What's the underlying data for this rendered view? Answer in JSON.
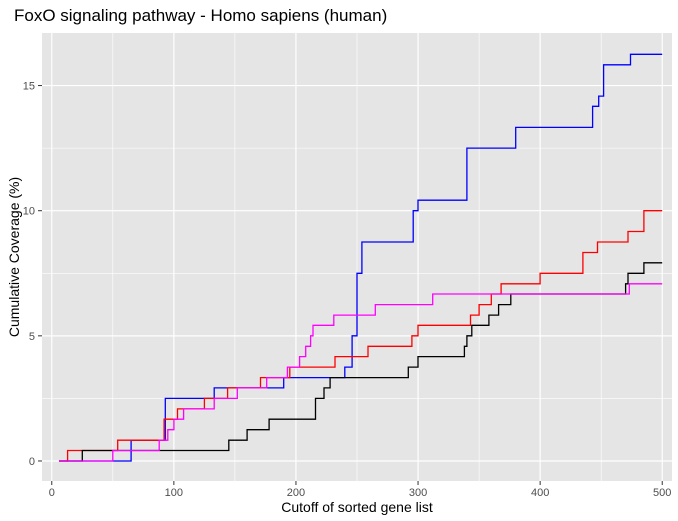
{
  "chart_data": {
    "type": "line",
    "title": "FoxO signaling pathway - Homo sapiens (human)",
    "xlabel": "Cutoff of sorted gene list",
    "ylabel": "Cumulative Coverage (%)",
    "xlim": [
      -8,
      508
    ],
    "ylim": [
      -0.8,
      17.1
    ],
    "x_ticks": [
      0,
      100,
      200,
      300,
      400,
      500
    ],
    "y_ticks": [
      0,
      5,
      10,
      15
    ],
    "x_tick_labels": [
      "0",
      "100",
      "200",
      "300",
      "400",
      "500"
    ],
    "y_tick_labels": [
      "0",
      "5",
      "10",
      "15"
    ],
    "grid": true,
    "legend": "none",
    "panel_color": "#e5e5e5",
    "grid_color": "#ffffff",
    "series": [
      {
        "color": "#0000ff",
        "points": [
          [
            6,
            0
          ],
          [
            65,
            0
          ],
          [
            65,
            0.83
          ],
          [
            93,
            0.83
          ],
          [
            93,
            2.5
          ],
          [
            133,
            2.5
          ],
          [
            133,
            2.92
          ],
          [
            190,
            2.92
          ],
          [
            190,
            3.33
          ],
          [
            240,
            3.33
          ],
          [
            240,
            3.75
          ],
          [
            246,
            3.75
          ],
          [
            246,
            5.0
          ],
          [
            250,
            5.0
          ],
          [
            250,
            7.5
          ],
          [
            254,
            7.5
          ],
          [
            254,
            8.75
          ],
          [
            296,
            8.75
          ],
          [
            296,
            10.0
          ],
          [
            300,
            10.0
          ],
          [
            300,
            10.42
          ],
          [
            340,
            10.42
          ],
          [
            340,
            12.5
          ],
          [
            380,
            12.5
          ],
          [
            380,
            13.33
          ],
          [
            443,
            13.33
          ],
          [
            443,
            14.17
          ],
          [
            448,
            14.17
          ],
          [
            448,
            14.58
          ],
          [
            452,
            14.58
          ],
          [
            452,
            15.83
          ],
          [
            474,
            15.83
          ],
          [
            474,
            16.25
          ],
          [
            500,
            16.25
          ]
        ]
      },
      {
        "color": "#ff0000",
        "points": [
          [
            6,
            0
          ],
          [
            13,
            0
          ],
          [
            13,
            0.42
          ],
          [
            54,
            0.42
          ],
          [
            54,
            0.83
          ],
          [
            92,
            0.83
          ],
          [
            92,
            1.67
          ],
          [
            103,
            1.67
          ],
          [
            103,
            2.08
          ],
          [
            125,
            2.08
          ],
          [
            125,
            2.5
          ],
          [
            144,
            2.5
          ],
          [
            144,
            2.92
          ],
          [
            171,
            2.92
          ],
          [
            171,
            3.33
          ],
          [
            195,
            3.33
          ],
          [
            195,
            3.75
          ],
          [
            232,
            3.75
          ],
          [
            232,
            4.17
          ],
          [
            259,
            4.17
          ],
          [
            259,
            4.58
          ],
          [
            295,
            4.58
          ],
          [
            295,
            5.0
          ],
          [
            300,
            5.0
          ],
          [
            300,
            5.42
          ],
          [
            343,
            5.42
          ],
          [
            343,
            5.83
          ],
          [
            350,
            5.83
          ],
          [
            350,
            6.25
          ],
          [
            360,
            6.25
          ],
          [
            360,
            6.67
          ],
          [
            368,
            6.67
          ],
          [
            368,
            7.08
          ],
          [
            400,
            7.08
          ],
          [
            400,
            7.5
          ],
          [
            435,
            7.5
          ],
          [
            435,
            8.33
          ],
          [
            447,
            8.33
          ],
          [
            447,
            8.75
          ],
          [
            472,
            8.75
          ],
          [
            472,
            9.17
          ],
          [
            485,
            9.17
          ],
          [
            485,
            10.0
          ],
          [
            500,
            10.0
          ]
        ]
      },
      {
        "color": "#000000",
        "points": [
          [
            6,
            0
          ],
          [
            25,
            0
          ],
          [
            25,
            0.42
          ],
          [
            145,
            0.42
          ],
          [
            145,
            0.83
          ],
          [
            160,
            0.83
          ],
          [
            160,
            1.25
          ],
          [
            178,
            1.25
          ],
          [
            178,
            1.67
          ],
          [
            216,
            1.67
          ],
          [
            216,
            2.5
          ],
          [
            223,
            2.5
          ],
          [
            223,
            2.92
          ],
          [
            228,
            2.92
          ],
          [
            228,
            3.33
          ],
          [
            292,
            3.33
          ],
          [
            292,
            3.75
          ],
          [
            300,
            3.75
          ],
          [
            300,
            4.17
          ],
          [
            338,
            4.17
          ],
          [
            338,
            4.58
          ],
          [
            340,
            4.58
          ],
          [
            340,
            5.0
          ],
          [
            344,
            5.0
          ],
          [
            344,
            5.42
          ],
          [
            358,
            5.42
          ],
          [
            358,
            5.83
          ],
          [
            366,
            5.83
          ],
          [
            366,
            6.25
          ],
          [
            376,
            6.25
          ],
          [
            376,
            6.67
          ],
          [
            470,
            6.67
          ],
          [
            470,
            7.08
          ],
          [
            472,
            7.08
          ],
          [
            472,
            7.5
          ],
          [
            485,
            7.5
          ],
          [
            485,
            7.92
          ],
          [
            500,
            7.92
          ]
        ]
      },
      {
        "color": "#ff00ff",
        "points": [
          [
            6,
            0
          ],
          [
            50,
            0
          ],
          [
            50,
            0.42
          ],
          [
            88,
            0.42
          ],
          [
            88,
            0.83
          ],
          [
            95,
            0.83
          ],
          [
            95,
            1.25
          ],
          [
            100,
            1.25
          ],
          [
            100,
            1.67
          ],
          [
            108,
            1.67
          ],
          [
            108,
            2.08
          ],
          [
            133,
            2.08
          ],
          [
            133,
            2.5
          ],
          [
            152,
            2.5
          ],
          [
            152,
            2.92
          ],
          [
            176,
            2.92
          ],
          [
            176,
            3.33
          ],
          [
            193,
            3.33
          ],
          [
            193,
            3.75
          ],
          [
            203,
            3.75
          ],
          [
            203,
            4.17
          ],
          [
            208,
            4.17
          ],
          [
            208,
            4.58
          ],
          [
            212,
            4.58
          ],
          [
            212,
            5.0
          ],
          [
            214,
            5.0
          ],
          [
            214,
            5.42
          ],
          [
            231,
            5.42
          ],
          [
            231,
            5.83
          ],
          [
            265,
            5.83
          ],
          [
            265,
            6.25
          ],
          [
            312,
            6.25
          ],
          [
            312,
            6.67
          ],
          [
            473,
            6.67
          ],
          [
            473,
            7.08
          ],
          [
            500,
            7.08
          ]
        ]
      }
    ]
  }
}
